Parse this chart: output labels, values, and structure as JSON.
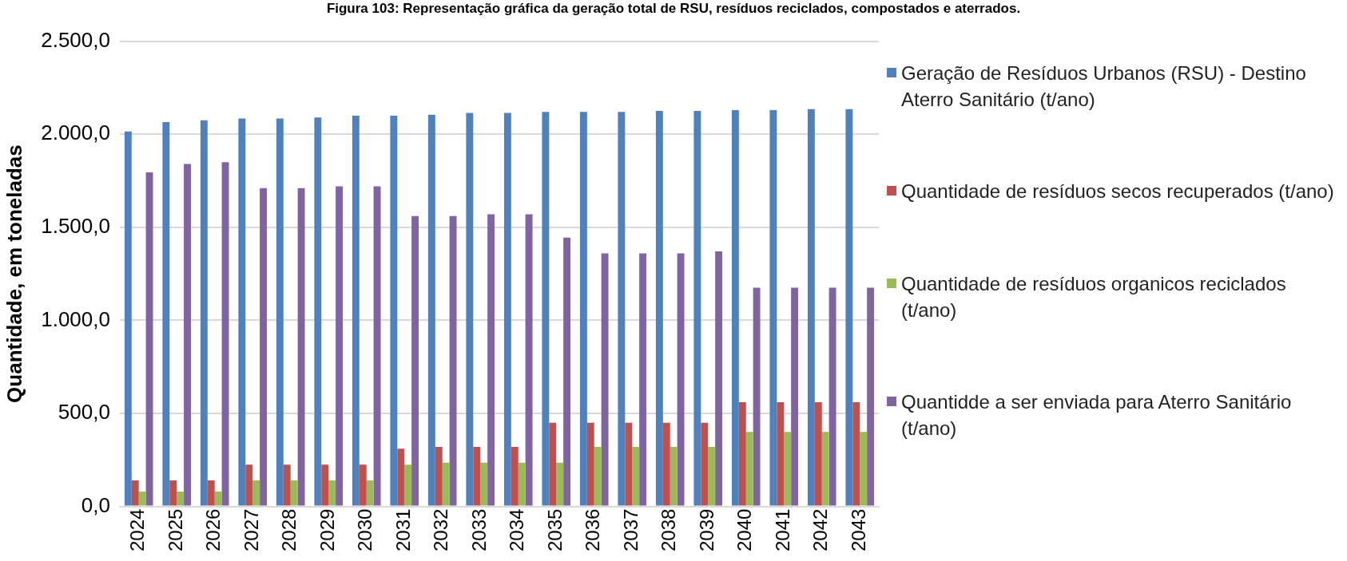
{
  "chart_data": {
    "type": "bar",
    "title": "Figura 103: Representação gráfica da geração total de RSU, resíduos reciclados, compostados e aterrados.",
    "ylabel": "Quantidade, em toneladas",
    "categories": [
      "2024",
      "2025",
      "2026",
      "2027",
      "2028",
      "2029",
      "2030",
      "2031",
      "2032",
      "2033",
      "2034",
      "2035",
      "2036",
      "2037",
      "2038",
      "2039",
      "2040",
      "2041",
      "2042",
      "2043"
    ],
    "series": [
      {
        "name": "Geração de Resíduos Urbanos (RSU) - Destino Aterro Sanitário (t/ano)",
        "color": "#4f81bd",
        "values": [
          2015,
          2065,
          2075,
          2085,
          2085,
          2090,
          2100,
          2100,
          2105,
          2115,
          2115,
          2120,
          2120,
          2120,
          2125,
          2125,
          2130,
          2130,
          2135,
          2135
        ]
      },
      {
        "name": "Quantidade de resíduos secos recuperados (t/ano)",
        "color": "#c0504d",
        "values": [
          140,
          140,
          140,
          225,
          225,
          225,
          225,
          310,
          320,
          320,
          320,
          450,
          450,
          450,
          450,
          450,
          560,
          560,
          560,
          560
        ]
      },
      {
        "name": "Quantidade de resíduos organicos reciclados (t/ano)",
        "color": "#9bbb59",
        "values": [
          80,
          80,
          80,
          140,
          140,
          140,
          140,
          225,
          235,
          235,
          235,
          235,
          320,
          320,
          320,
          320,
          400,
          400,
          400,
          400
        ]
      },
      {
        "name": "Quantidde a ser enviada para Aterro Sanitário (t/ano)",
        "color": "#8064a2",
        "values": [
          1795,
          1840,
          1850,
          1710,
          1710,
          1720,
          1720,
          1560,
          1560,
          1570,
          1570,
          1445,
          1360,
          1360,
          1360,
          1370,
          1175,
          1175,
          1175,
          1175
        ]
      }
    ],
    "ylim": [
      0,
      2500
    ],
    "yticks": [
      {
        "value": 0,
        "label": "0,0"
      },
      {
        "value": 500,
        "label": "500,0"
      },
      {
        "value": 1000,
        "label": "1.000,0"
      },
      {
        "value": 1500,
        "label": "1.500,0"
      },
      {
        "value": 2000,
        "label": "2.000,0"
      },
      {
        "value": 2500,
        "label": "2.500,0"
      }
    ],
    "grid": "y",
    "legend": "right"
  }
}
